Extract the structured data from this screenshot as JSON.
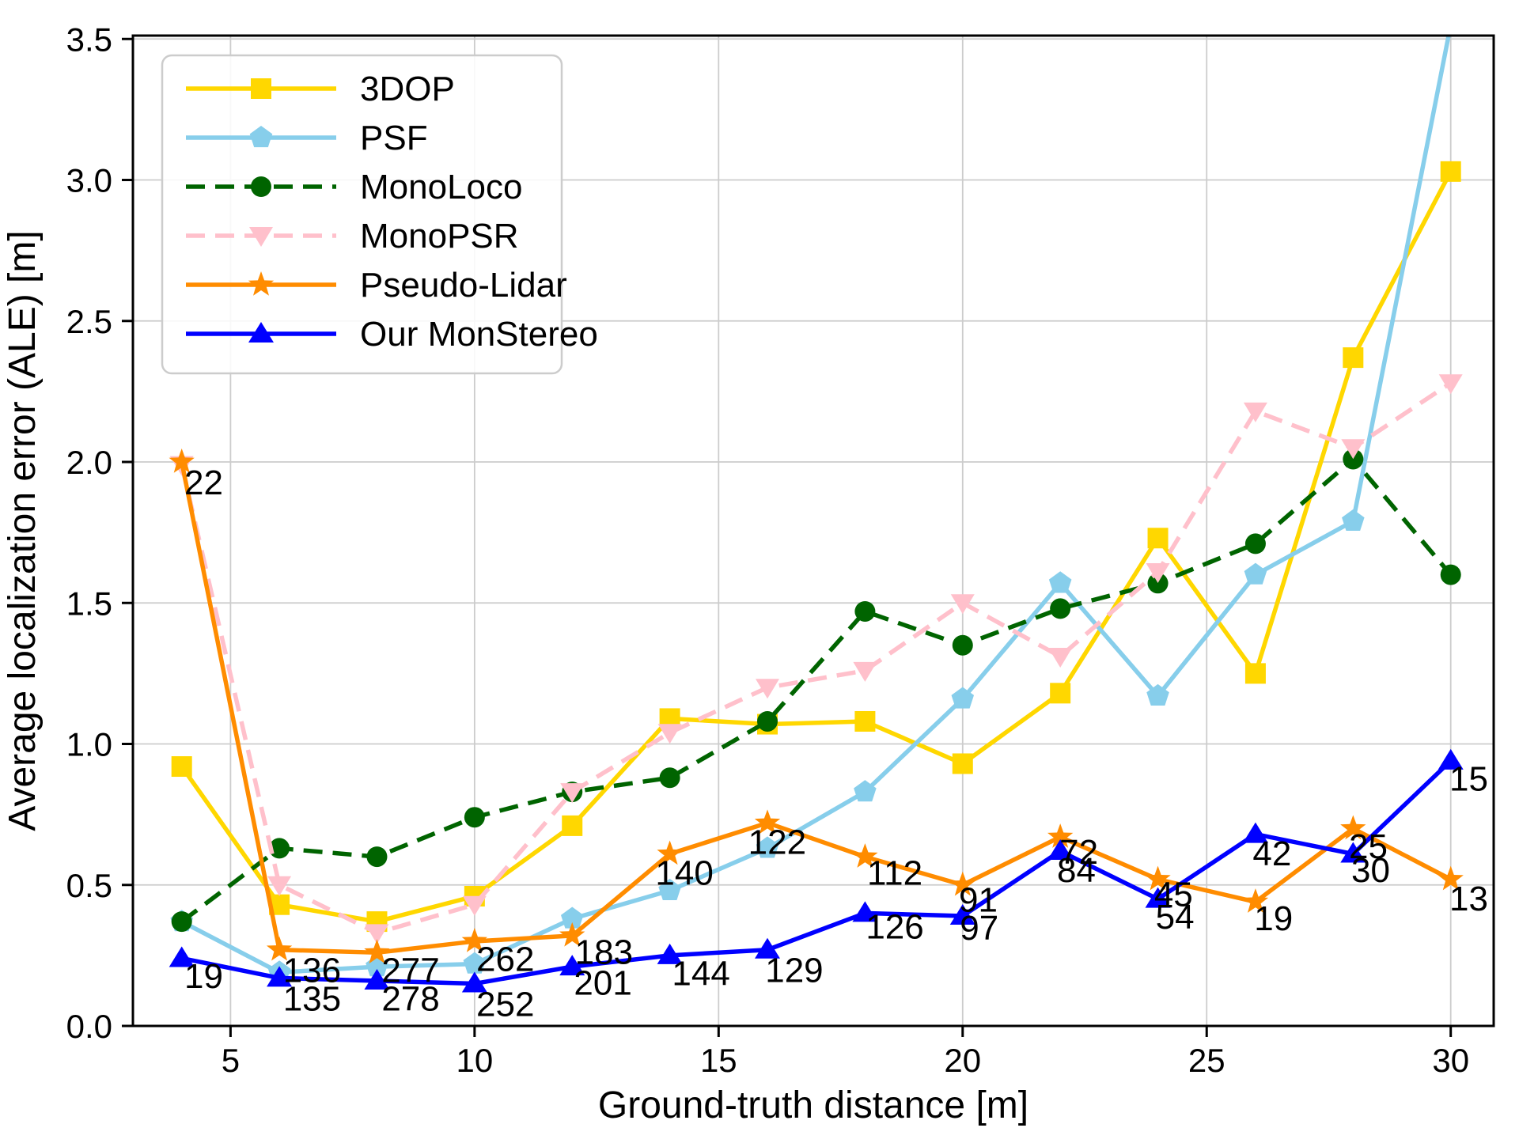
{
  "chart_data": {
    "type": "line",
    "title": "",
    "xlabel": "Ground-truth distance [m]",
    "ylabel": "Average localization error (ALE) [m]",
    "x": [
      4,
      6,
      8,
      10,
      12,
      14,
      16,
      18,
      20,
      22,
      24,
      26,
      28,
      30
    ],
    "xlim": [
      3.0,
      30.88
    ],
    "ylim": [
      0,
      3.512
    ],
    "xticks": [
      5,
      10,
      15,
      20,
      25,
      30
    ],
    "xtick_labels": [
      "5",
      "10",
      "15",
      "20",
      "25",
      "30"
    ],
    "yticks": [
      0.0,
      0.5,
      1.0,
      1.5,
      2.0,
      2.5,
      3.0,
      3.5
    ],
    "ytick_labels": [
      "0.0",
      "0.5",
      "1.0",
      "1.5",
      "2.0",
      "2.5",
      "3.0",
      "3.5"
    ],
    "grid": true,
    "grid_color": "#cccccc",
    "spine_color": "#000000",
    "legend_position": "upper-left",
    "series": [
      {
        "name": "3DOP",
        "color": "#FFD700",
        "marker": "square",
        "dash": "solid",
        "values": [
          0.92,
          0.43,
          0.37,
          0.46,
          0.71,
          1.09,
          1.07,
          1.08,
          0.93,
          1.18,
          1.73,
          1.25,
          2.37,
          3.03
        ]
      },
      {
        "name": "PSF",
        "color": "#87CEEB",
        "marker": "pentagon",
        "dash": "solid",
        "values": [
          0.37,
          0.19,
          0.21,
          0.22,
          0.38,
          0.48,
          0.63,
          0.83,
          1.16,
          1.57,
          1.17,
          1.6,
          1.79,
          3.55
        ]
      },
      {
        "name": "MonoLoco",
        "color": "#006400",
        "marker": "circle",
        "dash": "dashed",
        "values": [
          0.37,
          0.63,
          0.6,
          0.74,
          0.83,
          0.88,
          1.08,
          1.47,
          1.35,
          1.48,
          1.57,
          1.71,
          2.01,
          1.6
        ]
      },
      {
        "name": "MonoPSR",
        "color": "#FFC0CB",
        "marker": "triangle-down",
        "dash": "dashed",
        "values": [
          1.99,
          0.5,
          0.33,
          0.43,
          0.83,
          1.04,
          1.2,
          1.26,
          1.5,
          1.31,
          1.61,
          2.18,
          2.05,
          2.28
        ]
      },
      {
        "name": "Pseudo-Lidar",
        "color": "#FF8C00",
        "marker": "star",
        "dash": "solid",
        "values": [
          2.0,
          0.27,
          0.26,
          0.3,
          0.32,
          0.61,
          0.72,
          0.6,
          0.5,
          0.67,
          0.52,
          0.44,
          0.7,
          0.52
        ]
      },
      {
        "name": "Our MonStereo",
        "color": "#0000FF",
        "marker": "triangle-up",
        "dash": "solid",
        "values": [
          0.24,
          0.17,
          0.16,
          0.15,
          0.21,
          0.25,
          0.27,
          0.4,
          0.39,
          0.62,
          0.45,
          0.68,
          0.61,
          0.94
        ]
      }
    ],
    "annotations": [
      {
        "text": "22",
        "x": 4.45,
        "y": 1.93
      },
      {
        "text": "19",
        "x": 4.45,
        "y": 0.18
      },
      {
        "text": "136",
        "x": 6.67,
        "y": 0.2
      },
      {
        "text": "135",
        "x": 6.67,
        "y": 0.1
      },
      {
        "text": "277",
        "x": 8.69,
        "y": 0.2
      },
      {
        "text": "278",
        "x": 8.69,
        "y": 0.1
      },
      {
        "text": "262",
        "x": 10.63,
        "y": 0.24
      },
      {
        "text": "252",
        "x": 10.63,
        "y": 0.08
      },
      {
        "text": "183",
        "x": 12.65,
        "y": 0.265
      },
      {
        "text": "201",
        "x": 12.63,
        "y": 0.155
      },
      {
        "text": "140",
        "x": 14.3,
        "y": 0.545
      },
      {
        "text": "144",
        "x": 14.64,
        "y": 0.19
      },
      {
        "text": "122",
        "x": 16.2,
        "y": 0.655
      },
      {
        "text": "129",
        "x": 16.55,
        "y": 0.2
      },
      {
        "text": "112",
        "x": 18.61,
        "y": 0.545
      },
      {
        "text": "126",
        "x": 18.61,
        "y": 0.355
      },
      {
        "text": "91",
        "x": 20.32,
        "y": 0.45
      },
      {
        "text": "97",
        "x": 20.34,
        "y": 0.35
      },
      {
        "text": "72",
        "x": 22.38,
        "y": 0.62
      },
      {
        "text": "84",
        "x": 22.33,
        "y": 0.555
      },
      {
        "text": "45",
        "x": 24.32,
        "y": 0.47
      },
      {
        "text": "54",
        "x": 24.35,
        "y": 0.39
      },
      {
        "text": "42",
        "x": 26.34,
        "y": 0.615
      },
      {
        "text": "19",
        "x": 26.37,
        "y": 0.385
      },
      {
        "text": "25",
        "x": 28.31,
        "y": 0.64
      },
      {
        "text": "30",
        "x": 28.36,
        "y": 0.555
      },
      {
        "text": "15",
        "x": 30.37,
        "y": 0.88
      },
      {
        "text": "13",
        "x": 30.37,
        "y": 0.455
      }
    ]
  }
}
